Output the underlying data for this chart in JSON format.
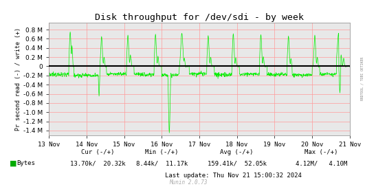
{
  "title": "Disk throughput for /dev/sdi - by week",
  "ylabel": "Pr second read (-) / write (+)",
  "background_color": "#ffffff",
  "plot_bg_color": "#e8e8e8",
  "grid_color": "#ff9999",
  "line_color": "#00ee00",
  "zero_line_color": "#000000",
  "x_tick_labels": [
    "13 Nov",
    "14 Nov",
    "15 Nov",
    "16 Nov",
    "17 Nov",
    "18 Nov",
    "19 Nov",
    "20 Nov",
    "21 Nov"
  ],
  "ylim_min": -1500000,
  "ylim_max": 950000,
  "y_ticks": [
    -1400000,
    -1200000,
    -1000000,
    -800000,
    -600000,
    -400000,
    -200000,
    0,
    200000,
    400000,
    600000,
    800000
  ],
  "legend_label": "Bytes",
  "legend_color": "#00aa00",
  "last_update": "Last update: Thu Nov 21 15:00:32 2024",
  "munin_text": "Munin 2.0.73",
  "rrdtool_text": "RRDTOOL / TOBI OETIKER",
  "cur_label": "Cur (-/+)",
  "min_label": "Min (-/+)",
  "avg_label": "Avg (-/+)",
  "max_label": "Max (-/+)",
  "cur_val": "13.70k/  20.32k",
  "min_val": "8.44k/  11.17k",
  "avg_val": "159.41k/  52.05k",
  "max_val": "4.12M/   4.10M",
  "num_points": 1200
}
